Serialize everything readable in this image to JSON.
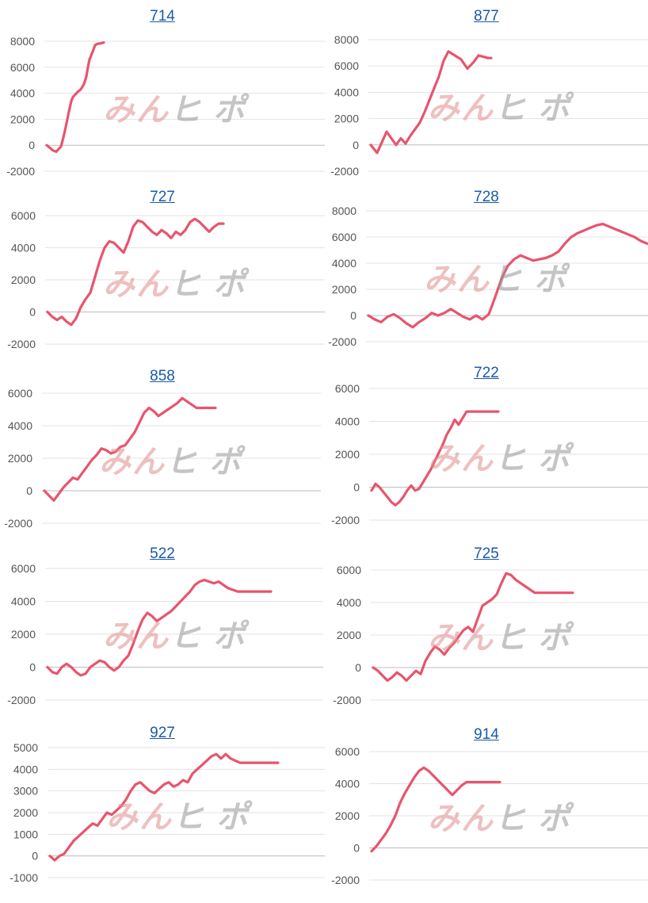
{
  "style": {
    "line_color": "#e8546e",
    "title_color": "#1a5aa8"
  },
  "watermark": {
    "part1": "みん",
    "part2": "ヒ ポ"
  },
  "chart_data": [
    {
      "type": "line",
      "title": "714",
      "ylim": [
        -2000,
        8000
      ],
      "yticks": [
        8000,
        6000,
        4000,
        2000,
        0,
        -2000
      ],
      "x": [
        0,
        4,
        8,
        12,
        15,
        18,
        21,
        24,
        28,
        31,
        33,
        36,
        39,
        43,
        47,
        50,
        52,
        54,
        58,
        61,
        64,
        69,
        72
      ],
      "values": [
        0,
        -200,
        -400,
        -500,
        -300,
        -100,
        600,
        1400,
        2600,
        3400,
        3700,
        3900,
        4100,
        4300,
        4700,
        5300,
        6000,
        6600,
        7200,
        7700,
        7800,
        7850,
        7900
      ]
    },
    {
      "type": "line",
      "title": "877",
      "ylim": [
        -2000,
        8000
      ],
      "yticks": [
        8000,
        6000,
        4000,
        2000,
        0,
        -2000
      ],
      "x": [
        0,
        8,
        14,
        20,
        26,
        32,
        38,
        44,
        50,
        56,
        62,
        68,
        74,
        80,
        86,
        92,
        98,
        106,
        114,
        122,
        130,
        136,
        142,
        148,
        152
      ],
      "values": [
        0,
        -600,
        200,
        1000,
        500,
        0,
        500,
        100,
        700,
        1200,
        1700,
        2500,
        3400,
        4300,
        5200,
        6400,
        7100,
        6800,
        6500,
        5800,
        6300,
        6800,
        6700,
        6600,
        6600
      ]
    },
    {
      "type": "line",
      "title": "727",
      "ylim": [
        -2000,
        6000
      ],
      "yticks": [
        6000,
        4000,
        2000,
        0,
        -2000
      ],
      "x": [
        0,
        6,
        12,
        18,
        24,
        30,
        36,
        42,
        48,
        54,
        60,
        66,
        72,
        78,
        84,
        90,
        96,
        102,
        108,
        114,
        120,
        126,
        132,
        138,
        144,
        150,
        156,
        162,
        168,
        174,
        180,
        186,
        192,
        198,
        204,
        210,
        216,
        222
      ],
      "values": [
        0,
        -300,
        -500,
        -300,
        -600,
        -800,
        -400,
        300,
        800,
        1200,
        2200,
        3200,
        4000,
        4400,
        4300,
        4000,
        3700,
        4400,
        5300,
        5700,
        5600,
        5300,
        5000,
        4800,
        5100,
        4900,
        4600,
        5000,
        4800,
        5100,
        5600,
        5800,
        5600,
        5300,
        5000,
        5300,
        5500,
        5500
      ]
    },
    {
      "type": "line",
      "title": "728",
      "ylim": [
        -2000,
        8000
      ],
      "yticks": [
        8000,
        6000,
        4000,
        2000,
        0,
        -2000
      ],
      "x": [
        0,
        8,
        16,
        24,
        32,
        40,
        48,
        56,
        64,
        72,
        80,
        88,
        96,
        104,
        112,
        120,
        128,
        136,
        144,
        152,
        160,
        168,
        176,
        184,
        192,
        200,
        208,
        216,
        224,
        232,
        240,
        248,
        256,
        264,
        272,
        280,
        288,
        296,
        304,
        312,
        320,
        328,
        336,
        344,
        352
      ],
      "values": [
        0,
        -300,
        -500,
        -100,
        100,
        -200,
        -600,
        -900,
        -500,
        -200,
        200,
        0,
        200,
        500,
        200,
        -100,
        -300,
        0,
        -300,
        100,
        1400,
        2800,
        3800,
        4300,
        4600,
        4400,
        4200,
        4300,
        4400,
        4600,
        4900,
        5500,
        6000,
        6300,
        6500,
        6700,
        6900,
        7000,
        6800,
        6600,
        6400,
        6200,
        6000,
        5700,
        5500
      ]
    },
    {
      "type": "line",
      "title": "858",
      "ylim": [
        -2000,
        6000
      ],
      "yticks": [
        6000,
        4000,
        2000,
        0,
        -2000
      ],
      "x": [
        0,
        6,
        12,
        18,
        24,
        30,
        36,
        42,
        48,
        54,
        60,
        66,
        72,
        78,
        84,
        90,
        96,
        102,
        108,
        114,
        120,
        126,
        132,
        138,
        144,
        150,
        156,
        162,
        168,
        174,
        180,
        186,
        192,
        198,
        204,
        210,
        216
      ],
      "values": [
        0,
        -300,
        -600,
        -200,
        200,
        500,
        800,
        700,
        1100,
        1500,
        1900,
        2200,
        2600,
        2500,
        2300,
        2400,
        2700,
        2800,
        3200,
        3600,
        4200,
        4800,
        5100,
        4900,
        4600,
        4800,
        5000,
        5200,
        5400,
        5700,
        5500,
        5300,
        5100,
        5100,
        5100,
        5100,
        5100
      ]
    },
    {
      "type": "line",
      "title": "722",
      "ylim": [
        -2000,
        6000
      ],
      "yticks": [
        6000,
        4000,
        2000,
        0,
        -2000
      ],
      "x": [
        0,
        5,
        10,
        15,
        20,
        25,
        30,
        35,
        40,
        45,
        50,
        55,
        60,
        65,
        70,
        75,
        80,
        85,
        90,
        95,
        100,
        105,
        110,
        115,
        120,
        125,
        130,
        135,
        140,
        145,
        150,
        155,
        160
      ],
      "values": [
        -200,
        200,
        0,
        -300,
        -600,
        -900,
        -1100,
        -900,
        -600,
        -200,
        100,
        -200,
        -100,
        300,
        700,
        1100,
        1600,
        2100,
        2600,
        3200,
        3600,
        4100,
        3800,
        4200,
        4600,
        4600,
        4600,
        4600,
        4600,
        4600,
        4600,
        4600,
        4600
      ]
    },
    {
      "type": "line",
      "title": "522",
      "ylim": [
        -2000,
        6000
      ],
      "yticks": [
        6000,
        4000,
        2000,
        0,
        -2000
      ],
      "x": [
        0,
        6,
        12,
        18,
        24,
        30,
        36,
        42,
        48,
        54,
        60,
        66,
        72,
        78,
        84,
        90,
        96,
        102,
        108,
        114,
        120,
        126,
        132,
        138,
        144,
        150,
        156,
        162,
        168,
        174,
        180,
        186,
        192,
        198,
        204,
        210,
        216,
        222,
        228,
        234,
        240,
        246,
        252,
        258,
        264,
        270,
        276,
        282
      ],
      "values": [
        0,
        -300,
        -400,
        0,
        200,
        0,
        -300,
        -500,
        -400,
        0,
        200,
        400,
        300,
        0,
        -200,
        0,
        400,
        700,
        1400,
        2200,
        2900,
        3300,
        3100,
        2800,
        3000,
        3200,
        3400,
        3700,
        4000,
        4300,
        4600,
        5000,
        5200,
        5300,
        5200,
        5100,
        5200,
        5000,
        4800,
        4700,
        4600,
        4600,
        4600,
        4600,
        4600,
        4600,
        4600,
        4600
      ]
    },
    {
      "type": "line",
      "title": "725",
      "ylim": [
        -2000,
        6000
      ],
      "yticks": [
        6000,
        4000,
        2000,
        0,
        -2000
      ],
      "x": [
        0,
        6,
        12,
        18,
        24,
        30,
        36,
        42,
        48,
        54,
        60,
        66,
        72,
        78,
        84,
        90,
        96,
        102,
        108,
        114,
        120,
        126,
        132,
        138,
        144,
        150,
        156,
        162,
        168,
        174,
        180,
        186,
        192,
        198,
        204,
        210,
        216,
        222,
        228,
        234,
        240,
        246,
        252
      ],
      "values": [
        0,
        -200,
        -500,
        -800,
        -600,
        -300,
        -500,
        -800,
        -500,
        -200,
        -400,
        400,
        900,
        1300,
        1100,
        800,
        1200,
        1500,
        1900,
        2300,
        2500,
        2200,
        3000,
        3800,
        4000,
        4200,
        4500,
        5200,
        5800,
        5700,
        5400,
        5200,
        5000,
        4800,
        4600,
        4600,
        4600,
        4600,
        4600,
        4600,
        4600,
        4600,
        4600
      ]
    },
    {
      "type": "line",
      "title": "927",
      "ylim": [
        -1000,
        5000
      ],
      "yticks": [
        5000,
        4000,
        3000,
        2000,
        1000,
        0,
        -1000
      ],
      "x": [
        0,
        6,
        12,
        18,
        24,
        30,
        36,
        42,
        48,
        54,
        60,
        66,
        72,
        78,
        84,
        90,
        96,
        102,
        108,
        114,
        120,
        126,
        132,
        138,
        144,
        150,
        156,
        162,
        168,
        174,
        180,
        186,
        192,
        198,
        204,
        210,
        216,
        222,
        228,
        234,
        240,
        246,
        252,
        258,
        264,
        270,
        276,
        282,
        288
      ],
      "values": [
        0,
        -200,
        0,
        100,
        400,
        700,
        900,
        1100,
        1300,
        1500,
        1400,
        1700,
        2000,
        1900,
        2100,
        2300,
        2600,
        3000,
        3300,
        3400,
        3200,
        3000,
        2900,
        3100,
        3300,
        3400,
        3200,
        3300,
        3500,
        3400,
        3800,
        4000,
        4200,
        4400,
        4600,
        4700,
        4500,
        4700,
        4500,
        4400,
        4300,
        4300,
        4300,
        4300,
        4300,
        4300,
        4300,
        4300,
        4300
      ]
    },
    {
      "type": "line",
      "title": "914",
      "ylim": [
        -2000,
        6000
      ],
      "yticks": [
        6000,
        4000,
        2000,
        0,
        -2000
      ],
      "x": [
        0,
        6,
        12,
        18,
        24,
        30,
        36,
        42,
        48,
        54,
        60,
        66,
        72,
        78,
        84,
        90,
        96,
        102,
        108,
        114,
        120,
        126,
        132,
        138,
        144,
        150,
        156,
        162
      ],
      "values": [
        -200,
        100,
        500,
        900,
        1400,
        2000,
        2800,
        3400,
        3900,
        4400,
        4800,
        5000,
        4800,
        4500,
        4200,
        3900,
        3600,
        3300,
        3600,
        3900,
        4100,
        4100,
        4100,
        4100,
        4100,
        4100,
        4100,
        4100
      ]
    }
  ]
}
